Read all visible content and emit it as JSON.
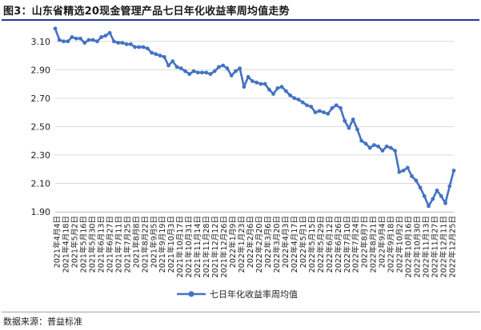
{
  "title": "图3：山东省精选20现金管理产品七日年化收益率周均值走势",
  "source": "数据来源：普益标准",
  "colors": {
    "line": "#4472c4",
    "grid": "#d9d9d9",
    "rule": "#1f3a93"
  },
  "chart_data": {
    "type": "line",
    "title": "图3：山东省精选20现金管理产品七日年化收益率周均值走势",
    "ylim": [
      1.9,
      3.2
    ],
    "yticks": [
      1.9,
      2.1,
      2.3,
      2.5,
      2.7,
      2.9,
      3.1
    ],
    "ytick_labels": [
      "1.90",
      "2.10",
      "2.30",
      "2.50",
      "2.70",
      "2.90",
      "3.10"
    ],
    "grid": true,
    "legend_position": "bottom",
    "xtick_labels": [
      "2021年4月4日",
      "2021年4月18日",
      "2021年5月2日",
      "2021年5月16日",
      "2021年5月30日",
      "2021年6月13日",
      "2021年6月27日",
      "2021年7月11日",
      "2021年7月25日",
      "2021年8月8日",
      "2021年8月22日",
      "2021年9月5日",
      "2021年9月19日",
      "2021年10月3日",
      "2021年10月17日",
      "2021年10月31日",
      "2021年11月14日",
      "2021年11月28日",
      "2021年12月12日",
      "2021年12月26日",
      "2022年1月9日",
      "2022年1月23日",
      "2022年2月6日",
      "2022年2月20日",
      "2022年3月6日",
      "2022年3月20日",
      "2022年4月3日",
      "2022年4月17日",
      "2022年5月1日",
      "2022年5月15日",
      "2022年5月29日",
      "2022年6月12日",
      "2022年6月26日",
      "2022年7月10日",
      "2022年7月24日",
      "2022年8月7日",
      "2022年8月21日",
      "2022年9月4日",
      "2022年9月18日",
      "2022年10月2日",
      "2022年10月16日",
      "2022年10月30日",
      "2022年11月13日",
      "2022年11月27日",
      "2022年12月11日",
      "2022年12月25日"
    ],
    "series": [
      {
        "name": "七日年化收益率周均值",
        "values": [
          3.19,
          3.11,
          3.1,
          3.1,
          3.13,
          3.12,
          3.12,
          3.09,
          3.11,
          3.11,
          3.1,
          3.13,
          3.14,
          3.16,
          3.1,
          3.09,
          3.09,
          3.08,
          3.08,
          3.06,
          3.06,
          3.06,
          3.05,
          3.02,
          3.01,
          3.0,
          2.99,
          2.93,
          2.96,
          2.92,
          2.91,
          2.89,
          2.87,
          2.89,
          2.88,
          2.88,
          2.88,
          2.87,
          2.89,
          2.92,
          2.93,
          2.91,
          2.86,
          2.89,
          2.91,
          2.78,
          2.85,
          2.82,
          2.81,
          2.8,
          2.8,
          2.76,
          2.73,
          2.77,
          2.78,
          2.75,
          2.72,
          2.7,
          2.69,
          2.67,
          2.65,
          2.64,
          2.6,
          2.61,
          2.6,
          2.59,
          2.63,
          2.65,
          2.63,
          2.54,
          2.49,
          2.55,
          2.48,
          2.4,
          2.38,
          2.35,
          2.37,
          2.36,
          2.33,
          2.36,
          2.35,
          2.33,
          2.18,
          2.19,
          2.21,
          2.15,
          2.12,
          2.07,
          2.01,
          1.94,
          1.99,
          2.05,
          2.01,
          1.96,
          2.08,
          2.19
        ]
      }
    ]
  }
}
